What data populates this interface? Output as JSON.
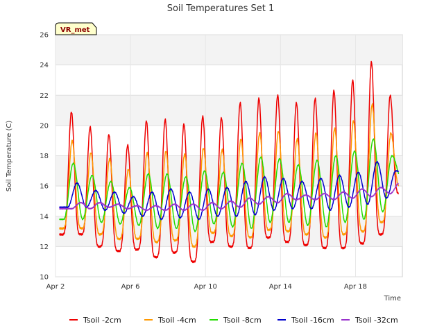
{
  "chart_data": {
    "type": "line",
    "title": "Soil Temperatures Set 1",
    "xlabel": "Time",
    "ylabel": "Soil Temperature (C)",
    "badge": "VR_met",
    "ylim": [
      10,
      26
    ],
    "yticks": [
      10,
      12,
      14,
      16,
      18,
      20,
      22,
      24,
      26
    ],
    "xlim": [
      1.0,
      19.5
    ],
    "xticks": [
      {
        "value": 1,
        "label": "Apr 2"
      },
      {
        "value": 5,
        "label": "Apr 6"
      },
      {
        "value": 9,
        "label": "Apr 10"
      },
      {
        "value": 13,
        "label": "Apr 14"
      },
      {
        "value": 17,
        "label": "Apr 18"
      }
    ],
    "grid": true,
    "legend": "bottom",
    "daily_peaks": [
      1.85,
      2.85,
      3.85,
      4.85,
      5.85,
      6.85,
      7.85,
      8.85,
      9.85,
      10.85,
      11.85,
      12.85,
      13.85,
      14.85,
      15.85,
      16.85,
      17.85,
      18.85
    ],
    "series": [
      {
        "name": "Tsoil -2cm",
        "color": "#ee0000",
        "peak_lag": 0.0,
        "sharpness": 2.2,
        "max": [
          20.9,
          19.9,
          19.4,
          18.7,
          20.3,
          20.4,
          20.1,
          20.6,
          20.5,
          21.5,
          21.8,
          22.0,
          21.5,
          21.8,
          22.3,
          23.0,
          24.2,
          22.0
        ],
        "min": [
          12.8,
          12.0,
          11.7,
          11.8,
          11.3,
          11.6,
          11.0,
          12.3,
          12.0,
          11.9,
          12.6,
          12.3,
          12.1,
          11.9,
          11.9,
          12.2,
          12.8,
          15.5
        ]
      },
      {
        "name": "Tsoil -4cm",
        "color": "#ff9900",
        "peak_lag": 0.04,
        "sharpness": 1.8,
        "max": [
          19.0,
          18.2,
          17.8,
          17.1,
          18.2,
          18.3,
          18.1,
          18.5,
          18.4,
          19.1,
          19.5,
          19.6,
          19.1,
          19.5,
          19.8,
          20.3,
          21.4,
          19.5
        ],
        "min": [
          13.2,
          12.8,
          12.5,
          12.5,
          12.3,
          12.4,
          12.0,
          12.9,
          12.7,
          12.6,
          13.1,
          13.0,
          12.8,
          12.6,
          12.8,
          13.0,
          13.6,
          16.0
        ]
      },
      {
        "name": "Tsoil -8cm",
        "color": "#22dd00",
        "peak_lag": 0.1,
        "sharpness": 1.0,
        "max": [
          17.5,
          16.7,
          16.3,
          15.9,
          16.8,
          16.8,
          16.6,
          17.0,
          16.9,
          17.5,
          17.9,
          17.8,
          17.4,
          17.7,
          18.0,
          18.3,
          19.1,
          18.0
        ],
        "min": [
          13.8,
          13.6,
          13.5,
          13.4,
          13.2,
          13.2,
          13.0,
          13.5,
          13.3,
          13.2,
          13.6,
          13.6,
          13.4,
          13.3,
          13.6,
          13.8,
          14.3,
          16.5
        ]
      },
      {
        "name": "Tsoil -16cm",
        "color": "#0000cc",
        "peak_lag": 0.3,
        "sharpness": 1.0,
        "max": [
          16.2,
          15.7,
          15.6,
          15.3,
          15.6,
          15.8,
          15.6,
          15.8,
          15.9,
          16.3,
          16.6,
          16.5,
          16.3,
          16.5,
          16.7,
          16.9,
          17.6,
          17.0
        ],
        "min": [
          14.6,
          14.4,
          14.2,
          14.0,
          13.8,
          13.9,
          13.8,
          14.0,
          14.0,
          14.1,
          14.4,
          14.5,
          14.5,
          14.4,
          14.6,
          14.8,
          15.2,
          16.8
        ]
      },
      {
        "name": "Tsoil -32cm",
        "color": "#9933cc",
        "peak_lag": 0.5,
        "sharpness": 1.0,
        "max": [
          14.9,
          14.9,
          14.8,
          14.7,
          14.7,
          14.8,
          14.8,
          14.9,
          15.0,
          15.2,
          15.3,
          15.5,
          15.4,
          15.5,
          15.6,
          15.8,
          15.9,
          16.2
        ],
        "min": [
          14.5,
          14.6,
          14.5,
          14.4,
          14.4,
          14.4,
          14.4,
          14.5,
          14.6,
          14.8,
          14.9,
          15.1,
          15.1,
          15.1,
          15.2,
          15.3,
          15.5,
          15.9
        ]
      }
    ]
  }
}
